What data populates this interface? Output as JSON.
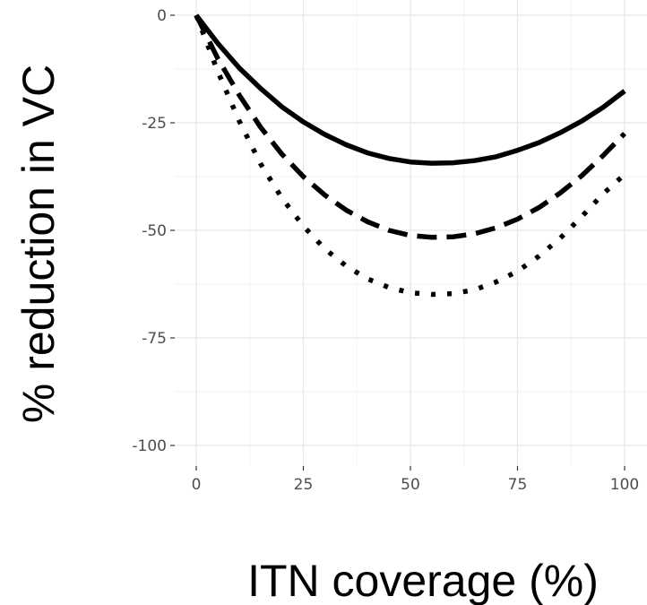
{
  "chart_data": {
    "type": "line",
    "title": "",
    "xlabel": "ITN coverage (%)",
    "ylabel": "% reduction in VC",
    "xlim": [
      0,
      100
    ],
    "ylim": [
      -100,
      0
    ],
    "x_ticks": [
      0,
      25,
      50,
      75,
      100
    ],
    "y_ticks": [
      0,
      -25,
      -50,
      -75,
      -100
    ],
    "x_tick_labels": [
      "0",
      "25",
      "50",
      "75",
      "100"
    ],
    "y_tick_labels": [
      "0",
      "-25",
      "-50",
      "-75",
      "-100"
    ],
    "grid": true,
    "legend": "none",
    "x": [
      0,
      5,
      10,
      15,
      20,
      25,
      30,
      35,
      40,
      45,
      50,
      55,
      60,
      65,
      70,
      75,
      80,
      85,
      90,
      95,
      100
    ],
    "series": [
      {
        "line_style": "solid",
        "color": "#000000",
        "values": [
          0,
          -6.5,
          -12.2,
          -17.0,
          -21.3,
          -24.8,
          -27.7,
          -30.1,
          -32.0,
          -33.3,
          -34.1,
          -34.4,
          -34.3,
          -33.8,
          -32.9,
          -31.4,
          -29.6,
          -27.3,
          -24.6,
          -21.4,
          -17.6
        ]
      },
      {
        "line_style": "dashed",
        "color": "#000000",
        "values": [
          0,
          -10.0,
          -18.5,
          -26.0,
          -32.3,
          -37.5,
          -41.8,
          -45.3,
          -48.0,
          -50.0,
          -51.2,
          -51.6,
          -51.5,
          -50.8,
          -49.4,
          -47.4,
          -44.7,
          -41.3,
          -37.3,
          -32.6,
          -27.5
        ]
      },
      {
        "line_style": "dotted",
        "color": "#000000",
        "values": [
          0,
          -13.0,
          -24.5,
          -34.5,
          -42.5,
          -49.0,
          -54.3,
          -58.3,
          -61.3,
          -63.3,
          -64.5,
          -64.9,
          -64.7,
          -63.8,
          -62.0,
          -59.5,
          -56.0,
          -51.8,
          -46.8,
          -41.5,
          -37.0
        ]
      }
    ]
  }
}
